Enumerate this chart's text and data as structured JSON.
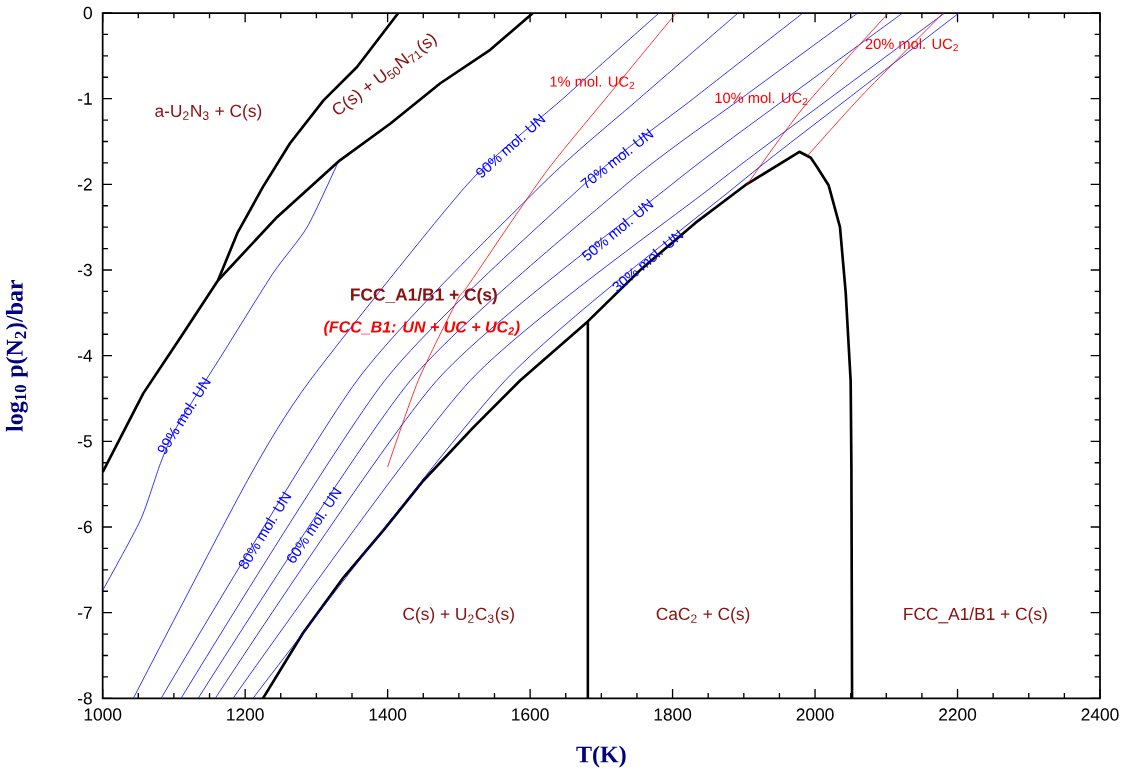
{
  "chart_data": {
    "type": "line",
    "xlabel": "T(K)",
    "ylabel": "log$_{10}$ p(N$_{2}$)/bar",
    "xlim": [
      1000,
      2400
    ],
    "ylim": [
      -8,
      0
    ],
    "xticks": [
      1000,
      1200,
      1400,
      1600,
      1800,
      2000,
      2200,
      2400
    ],
    "yticks": [
      0,
      -1,
      -2,
      -3,
      -4,
      -5,
      -6,
      -7,
      -8
    ],
    "series": [
      {
        "color": "#000000",
        "x": [
          1000,
          1057,
          1109,
          1162,
          1245,
          1333,
          1404,
          1474,
          1544,
          1604
        ],
        "values": [
          -5.36,
          -4.44,
          -3.79,
          -3.12,
          -2.38,
          -1.72,
          -1.29,
          -0.82,
          -0.43,
          0
        ]
      },
      {
        "color": "#000000",
        "x": [
          1162,
          1189,
          1225,
          1263,
          1310,
          1357,
          1415
        ],
        "values": [
          -3.12,
          -2.57,
          -2.03,
          -1.52,
          -1.02,
          -0.63,
          0
        ]
      },
      {
        "color": "#000000",
        "x": [
          1225,
          1281,
          1338,
          1394,
          1450,
          1520,
          1586,
          1681,
          1756,
          1832,
          1902,
          1978,
          1994,
          2003,
          2019,
          2035,
          2043,
          2050,
          2051,
          2052
        ],
        "values": [
          -8,
          -7.24,
          -6.59,
          -6.04,
          -5.46,
          -4.84,
          -4.29,
          -3.6,
          -2.99,
          -2.45,
          -2.01,
          -1.62,
          -1.69,
          -1.8,
          -2.01,
          -2.5,
          -3.26,
          -4.3,
          -5.28,
          -8
        ]
      },
      {
        "color": "#000000",
        "x": [
          1681,
          1681
        ],
        "values": [
          -3.6,
          -8
        ]
      },
      {
        "name": "99% mol. UN",
        "color": "#0000ff",
        "x": [
          1000,
          1053,
          1081,
          1104,
          1169,
          1239,
          1287,
          1330
        ],
        "values": [
          -6.74,
          -5.92,
          -5.26,
          -4.83,
          -3.97,
          -3.04,
          -2.5,
          -1.75
        ]
      },
      {
        "name": "90% mol. UN",
        "color": "#0000ff",
        "x": [
          1043,
          1203,
          1291,
          1512,
          1646,
          1781
        ],
        "values": [
          -8,
          -5.46,
          -4.29,
          -2,
          -1,
          0
        ]
      },
      {
        "name": "80% mol. UN",
        "color": "#0000ff",
        "x": [
          1082,
          1357,
          1617,
          1753,
          1892
        ],
        "values": [
          -8,
          -4.29,
          -2,
          -1,
          0
        ]
      },
      {
        "name": "70% mol. UN",
        "color": "#0000ff",
        "x": [
          1110,
          1396,
          1676,
          1829,
          1983
        ],
        "values": [
          -8,
          -4.29,
          -2,
          -1,
          0
        ]
      },
      {
        "name": "60% mol. UN",
        "color": "#0000ff",
        "x": [
          1134,
          1432,
          1735,
          1896,
          2060
        ],
        "values": [
          -8,
          -4.29,
          -2,
          -1,
          0
        ]
      },
      {
        "name": "50% mol. UN",
        "color": "#0000ff",
        "x": [
          1158,
          1469,
          1799,
          1959,
          2123
        ],
        "values": [
          -8,
          -4.29,
          -2,
          -1,
          0
        ]
      },
      {
        "color": "#0000ff",
        "x": [
          1183,
          1516,
          1860,
          2020,
          2182
        ],
        "values": [
          -8,
          -4.29,
          -2,
          -1,
          0
        ]
      },
      {
        "name": "30% mol. UN",
        "color": "#0000ff",
        "x": [
          1211,
          1565,
          1892,
          2046,
          2202
        ],
        "values": [
          -8,
          -4.29,
          -2,
          -1,
          0
        ]
      },
      {
        "name": "1% mol. UC$_{2}$",
        "color": "#ff0000",
        "x": [
          1400,
          1443,
          1498,
          1513,
          1621,
          1714,
          1805
        ],
        "values": [
          -5.3,
          -4.29,
          -3.35,
          -3.18,
          -1.87,
          -0.92,
          0
        ]
      },
      {
        "name": "10% mol. UC$_{2}$",
        "color": "#ff0000",
        "x": [
          1904,
          1983,
          2103
        ],
        "values": [
          -2.01,
          -1.11,
          0
        ]
      },
      {
        "name": "20% mol. UC$_{2}$",
        "color": "#ff0000",
        "x": [
          1989,
          2065,
          2180
        ],
        "values": [
          -1.67,
          -0.97,
          0
        ]
      }
    ],
    "annotations": [
      "a-U$_{2}$N$_{3}$ + C(s)",
      "C(s) + U$_{50}$N$_{71}$(s)",
      "FCC_A1/B1 + C(s)",
      "(FCC_B1: UN + UC + UC$_{2}$)",
      "C(s) + U$_{2}$C$_{3}$(s)",
      "CaC$_{2}$ + C(s)",
      "FCC_A1/B1 + C(s)"
    ]
  }
}
